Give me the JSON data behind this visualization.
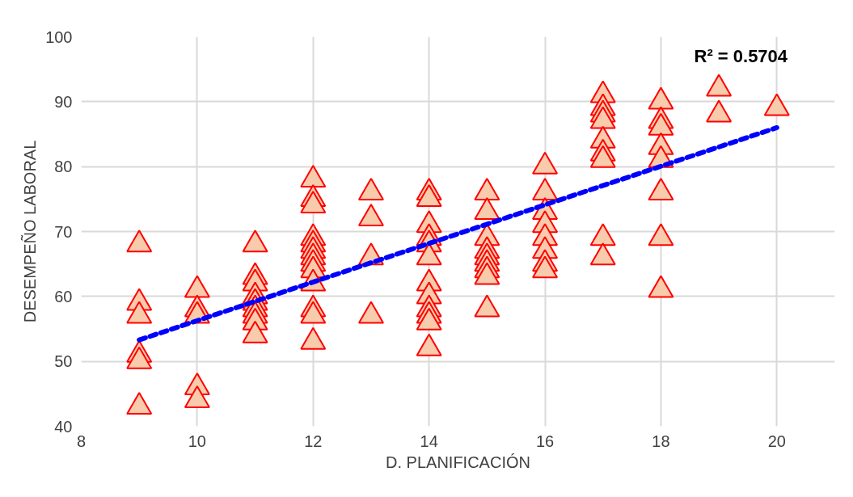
{
  "chart_data": {
    "type": "scatter",
    "xlabel": "D. PLANIFICACIÓN",
    "ylabel": "DESEMPEÑO LABORAL",
    "xlim": [
      8,
      21
    ],
    "ylim": [
      40,
      100
    ],
    "xticks": [
      8,
      10,
      12,
      14,
      16,
      18,
      20
    ],
    "yticks": [
      40,
      50,
      60,
      70,
      80,
      90,
      100
    ],
    "grid": true,
    "legend": false,
    "marker": "triangle",
    "annotations": [
      "R² = 0.5704"
    ],
    "series": [
      {
        "type": "scatter",
        "color": "#f8cbad",
        "x": [
          9,
          9,
          9,
          9,
          9,
          9,
          10,
          10,
          10,
          10,
          10,
          11,
          11,
          11,
          11,
          11,
          11,
          11,
          11,
          11,
          12,
          12,
          12,
          12,
          12,
          12,
          12,
          12,
          12,
          12,
          12,
          12,
          12,
          13,
          13,
          13,
          13,
          14,
          14,
          14,
          14,
          14,
          14,
          14,
          14,
          14,
          14,
          14,
          14,
          15,
          15,
          15,
          15,
          15,
          15,
          15,
          15,
          15,
          16,
          16,
          16,
          16,
          16,
          16,
          16,
          16,
          17,
          17,
          17,
          17,
          17,
          17,
          17,
          17,
          17,
          18,
          18,
          18,
          18,
          18,
          18,
          18,
          18,
          19,
          19,
          20
        ],
        "values": [
          68,
          59,
          57,
          51,
          50,
          43,
          61,
          58,
          57,
          46,
          44,
          68,
          63,
          62,
          60,
          59,
          58,
          57,
          56,
          54,
          78,
          75,
          74,
          69,
          68,
          67,
          66,
          65,
          64,
          62,
          58,
          57,
          53,
          76,
          72,
          66,
          57,
          76,
          75,
          71,
          69,
          68,
          66,
          62,
          60,
          58,
          57,
          56,
          52,
          76,
          73,
          69,
          67,
          66,
          65,
          64,
          63,
          58,
          80,
          76,
          73,
          71,
          69,
          67,
          65,
          64,
          91,
          89,
          88,
          87,
          84,
          82,
          81,
          69,
          66,
          90,
          87,
          86,
          83,
          81,
          76,
          69,
          61,
          92,
          88,
          89
        ]
      },
      {
        "type": "line",
        "color": "#0000ff",
        "line_style": "dashed",
        "marker": "none",
        "x": [
          9,
          20
        ],
        "values": [
          53.3,
          86
        ]
      }
    ]
  }
}
